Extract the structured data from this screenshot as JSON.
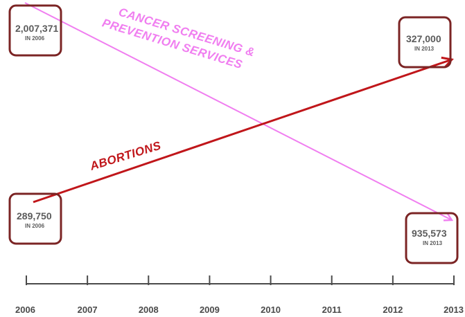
{
  "chart_data": {
    "type": "line",
    "x": [
      "2006",
      "2013"
    ],
    "xticks": [
      "2006",
      "2007",
      "2008",
      "2009",
      "2010",
      "2011",
      "2012",
      "2013"
    ],
    "series": [
      {
        "name": "CANCER SCREENING & PREVENTION SERVICES",
        "name_lines": [
          "CANCER SCREENING &",
          "PREVENTION SERVICES"
        ],
        "values": [
          2007371,
          935573
        ],
        "color": "#f07ef0",
        "start_callout": {
          "value": "2,007,371",
          "note": "IN 2006"
        },
        "end_callout": {
          "value": "935,573",
          "note": "IN 2013"
        }
      },
      {
        "name": "ABORTIONS",
        "name_lines": [
          "ABORTIONS"
        ],
        "values": [
          289750,
          327000
        ],
        "color": "#c0161a",
        "start_callout": {
          "value": "289,750",
          "note": "IN 2006"
        },
        "end_callout": {
          "value": "327,000",
          "note": "IN 2013"
        }
      }
    ],
    "box_color": "#7b2424",
    "axis_color": "#4a4a4a"
  }
}
